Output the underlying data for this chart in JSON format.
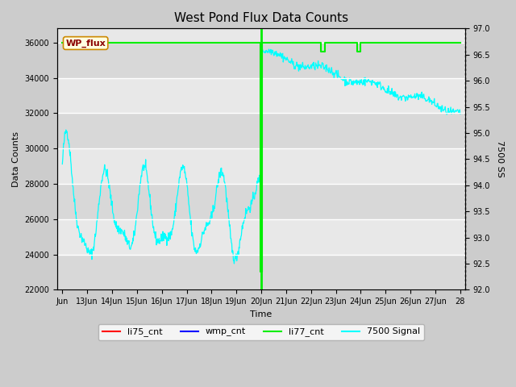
{
  "title": "West Pond Flux Data Counts",
  "xlabel": "Time",
  "ylabel_left": "Data Counts",
  "ylabel_right": "7500 SS",
  "ylim_left": [
    22000,
    36800
  ],
  "ylim_right": [
    92.0,
    97.0
  ],
  "annotation_label": "WP_flux",
  "li77_line_color": "#00ee00",
  "signal_line_color": "cyan",
  "li75_color": "red",
  "wmp_color": "blue",
  "li77_color": "#00ee00",
  "signal_color": "cyan",
  "xtick_labels": [
    "Jun",
    "13Jun",
    "14Jun",
    "15Jun",
    "16Jun",
    "17Jun",
    "18Jun",
    "19Jun",
    "20Jun",
    "21Jun",
    "22Jun",
    "23Jun",
    "24Jun",
    "25Jun",
    "26Jun",
    "27Jun",
    "28"
  ],
  "ytick_left": [
    22000,
    24000,
    26000,
    28000,
    30000,
    32000,
    34000,
    36000
  ],
  "ytick_right": [
    92.0,
    92.5,
    93.0,
    93.5,
    94.0,
    94.5,
    95.0,
    95.5,
    96.0,
    96.5,
    97.0
  ],
  "seed": 42
}
